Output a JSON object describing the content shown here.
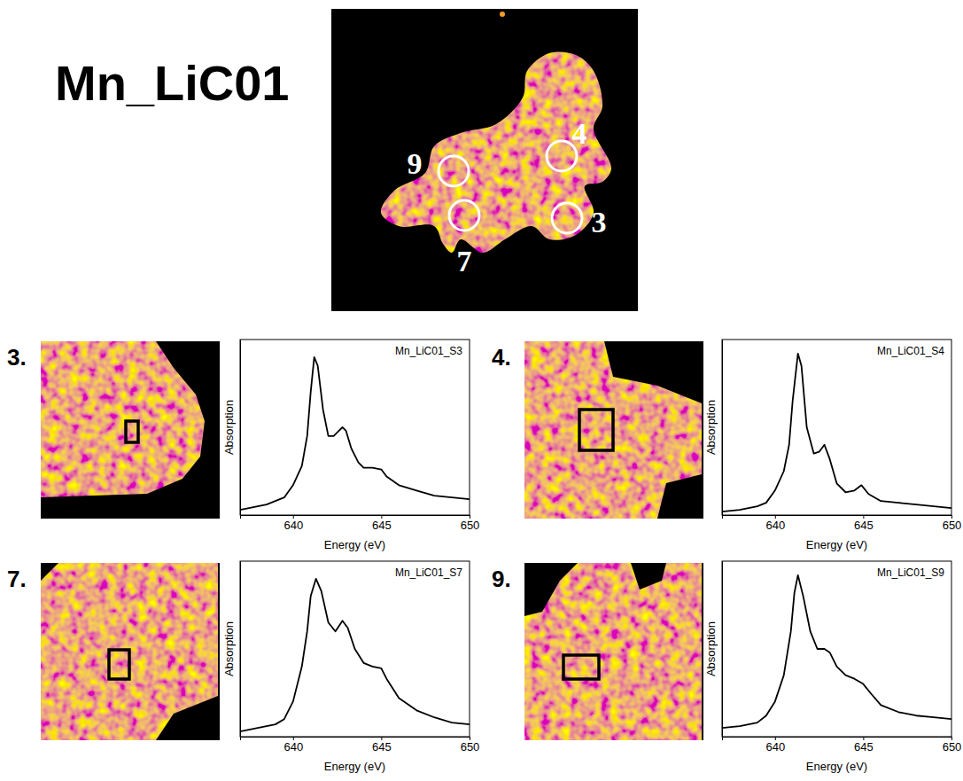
{
  "title": "Mn_LiC01",
  "map_labels": [
    "9",
    "4",
    "3",
    "7"
  ],
  "chart_data": [
    {
      "type": "line",
      "panel": "3.",
      "title": "Mn_LiC01_S3",
      "xlabel": "Energy (eV)",
      "ylabel": "Absorption",
      "x": [
        637,
        638,
        638.5,
        639,
        639.5,
        640,
        640.5,
        640.8,
        641,
        641.2,
        641.4,
        641.7,
        642,
        642.3,
        642.6,
        642.8,
        643,
        643.3,
        643.7,
        644,
        644.5,
        645,
        645.3,
        646,
        647,
        648,
        649,
        650
      ],
      "values": [
        0.03,
        0.05,
        0.06,
        0.08,
        0.1,
        0.17,
        0.28,
        0.45,
        0.7,
        0.9,
        0.85,
        0.6,
        0.45,
        0.45,
        0.48,
        0.5,
        0.48,
        0.38,
        0.3,
        0.27,
        0.27,
        0.26,
        0.22,
        0.17,
        0.14,
        0.11,
        0.1,
        0.09
      ],
      "color": "#000000",
      "xlim": [
        637,
        650
      ],
      "xticks": [
        640,
        645,
        650
      ],
      "ylim": [
        0,
        1
      ],
      "yticks": [],
      "tick_labels": "x"
    },
    {
      "type": "line",
      "panel": "4.",
      "title": "Mn_LiC01_S4",
      "xlabel": "Energy (eV)",
      "ylabel": "Absorption",
      "x": [
        637,
        638,
        639,
        639.5,
        640,
        640.5,
        640.8,
        641,
        641.3,
        641.5,
        641.8,
        642.2,
        642.5,
        642.8,
        643.1,
        643.5,
        644,
        644.5,
        644.9,
        645.3,
        646,
        647,
        648,
        650
      ],
      "values": [
        0.02,
        0.03,
        0.05,
        0.07,
        0.14,
        0.25,
        0.4,
        0.65,
        0.92,
        0.85,
        0.5,
        0.35,
        0.36,
        0.4,
        0.32,
        0.18,
        0.13,
        0.14,
        0.17,
        0.12,
        0.08,
        0.07,
        0.06,
        0.04
      ],
      "color": "#000000",
      "xlim": [
        637,
        650
      ],
      "xticks": [
        640,
        645,
        650
      ],
      "ylim": [
        0,
        1
      ],
      "yticks": [],
      "tick_labels": "x"
    },
    {
      "type": "line",
      "panel": "7.",
      "title": "Mn_LiC01_S7",
      "xlabel": "Energy (eV)",
      "ylabel": "Absorption",
      "x": [
        637,
        638,
        639,
        639.5,
        640,
        640.5,
        640.8,
        641,
        641.3,
        641.6,
        642,
        642.4,
        642.8,
        643.1,
        643.5,
        644,
        644.5,
        645,
        645.3,
        646,
        647,
        648,
        649,
        650
      ],
      "values": [
        0.03,
        0.05,
        0.07,
        0.1,
        0.2,
        0.4,
        0.6,
        0.8,
        0.9,
        0.83,
        0.65,
        0.6,
        0.66,
        0.62,
        0.5,
        0.42,
        0.4,
        0.39,
        0.33,
        0.22,
        0.15,
        0.11,
        0.08,
        0.07
      ],
      "color": "#000000",
      "xlim": [
        637,
        650
      ],
      "xticks": [
        640,
        645,
        650
      ],
      "ylim": [
        0,
        1
      ],
      "yticks": [],
      "tick_labels": "x"
    },
    {
      "type": "line",
      "panel": "9.",
      "title": "Mn_LiC01_S9",
      "xlabel": "Energy (eV)",
      "ylabel": "Absorption",
      "x": [
        637,
        638,
        639,
        639.5,
        640,
        640.5,
        640.9,
        641.1,
        641.3,
        641.6,
        642,
        642.4,
        642.8,
        643.1,
        643.5,
        644,
        644.5,
        645,
        645.4,
        646,
        647,
        648,
        649,
        650
      ],
      "values": [
        0.05,
        0.06,
        0.08,
        0.12,
        0.2,
        0.35,
        0.6,
        0.82,
        0.92,
        0.8,
        0.6,
        0.5,
        0.5,
        0.48,
        0.4,
        0.35,
        0.33,
        0.3,
        0.25,
        0.18,
        0.14,
        0.12,
        0.11,
        0.1
      ],
      "color": "#000000",
      "xlim": [
        637,
        650
      ],
      "xticks": [
        640,
        645,
        650
      ],
      "ylim": [
        0,
        1
      ],
      "yticks": [],
      "tick_labels": "x"
    }
  ]
}
